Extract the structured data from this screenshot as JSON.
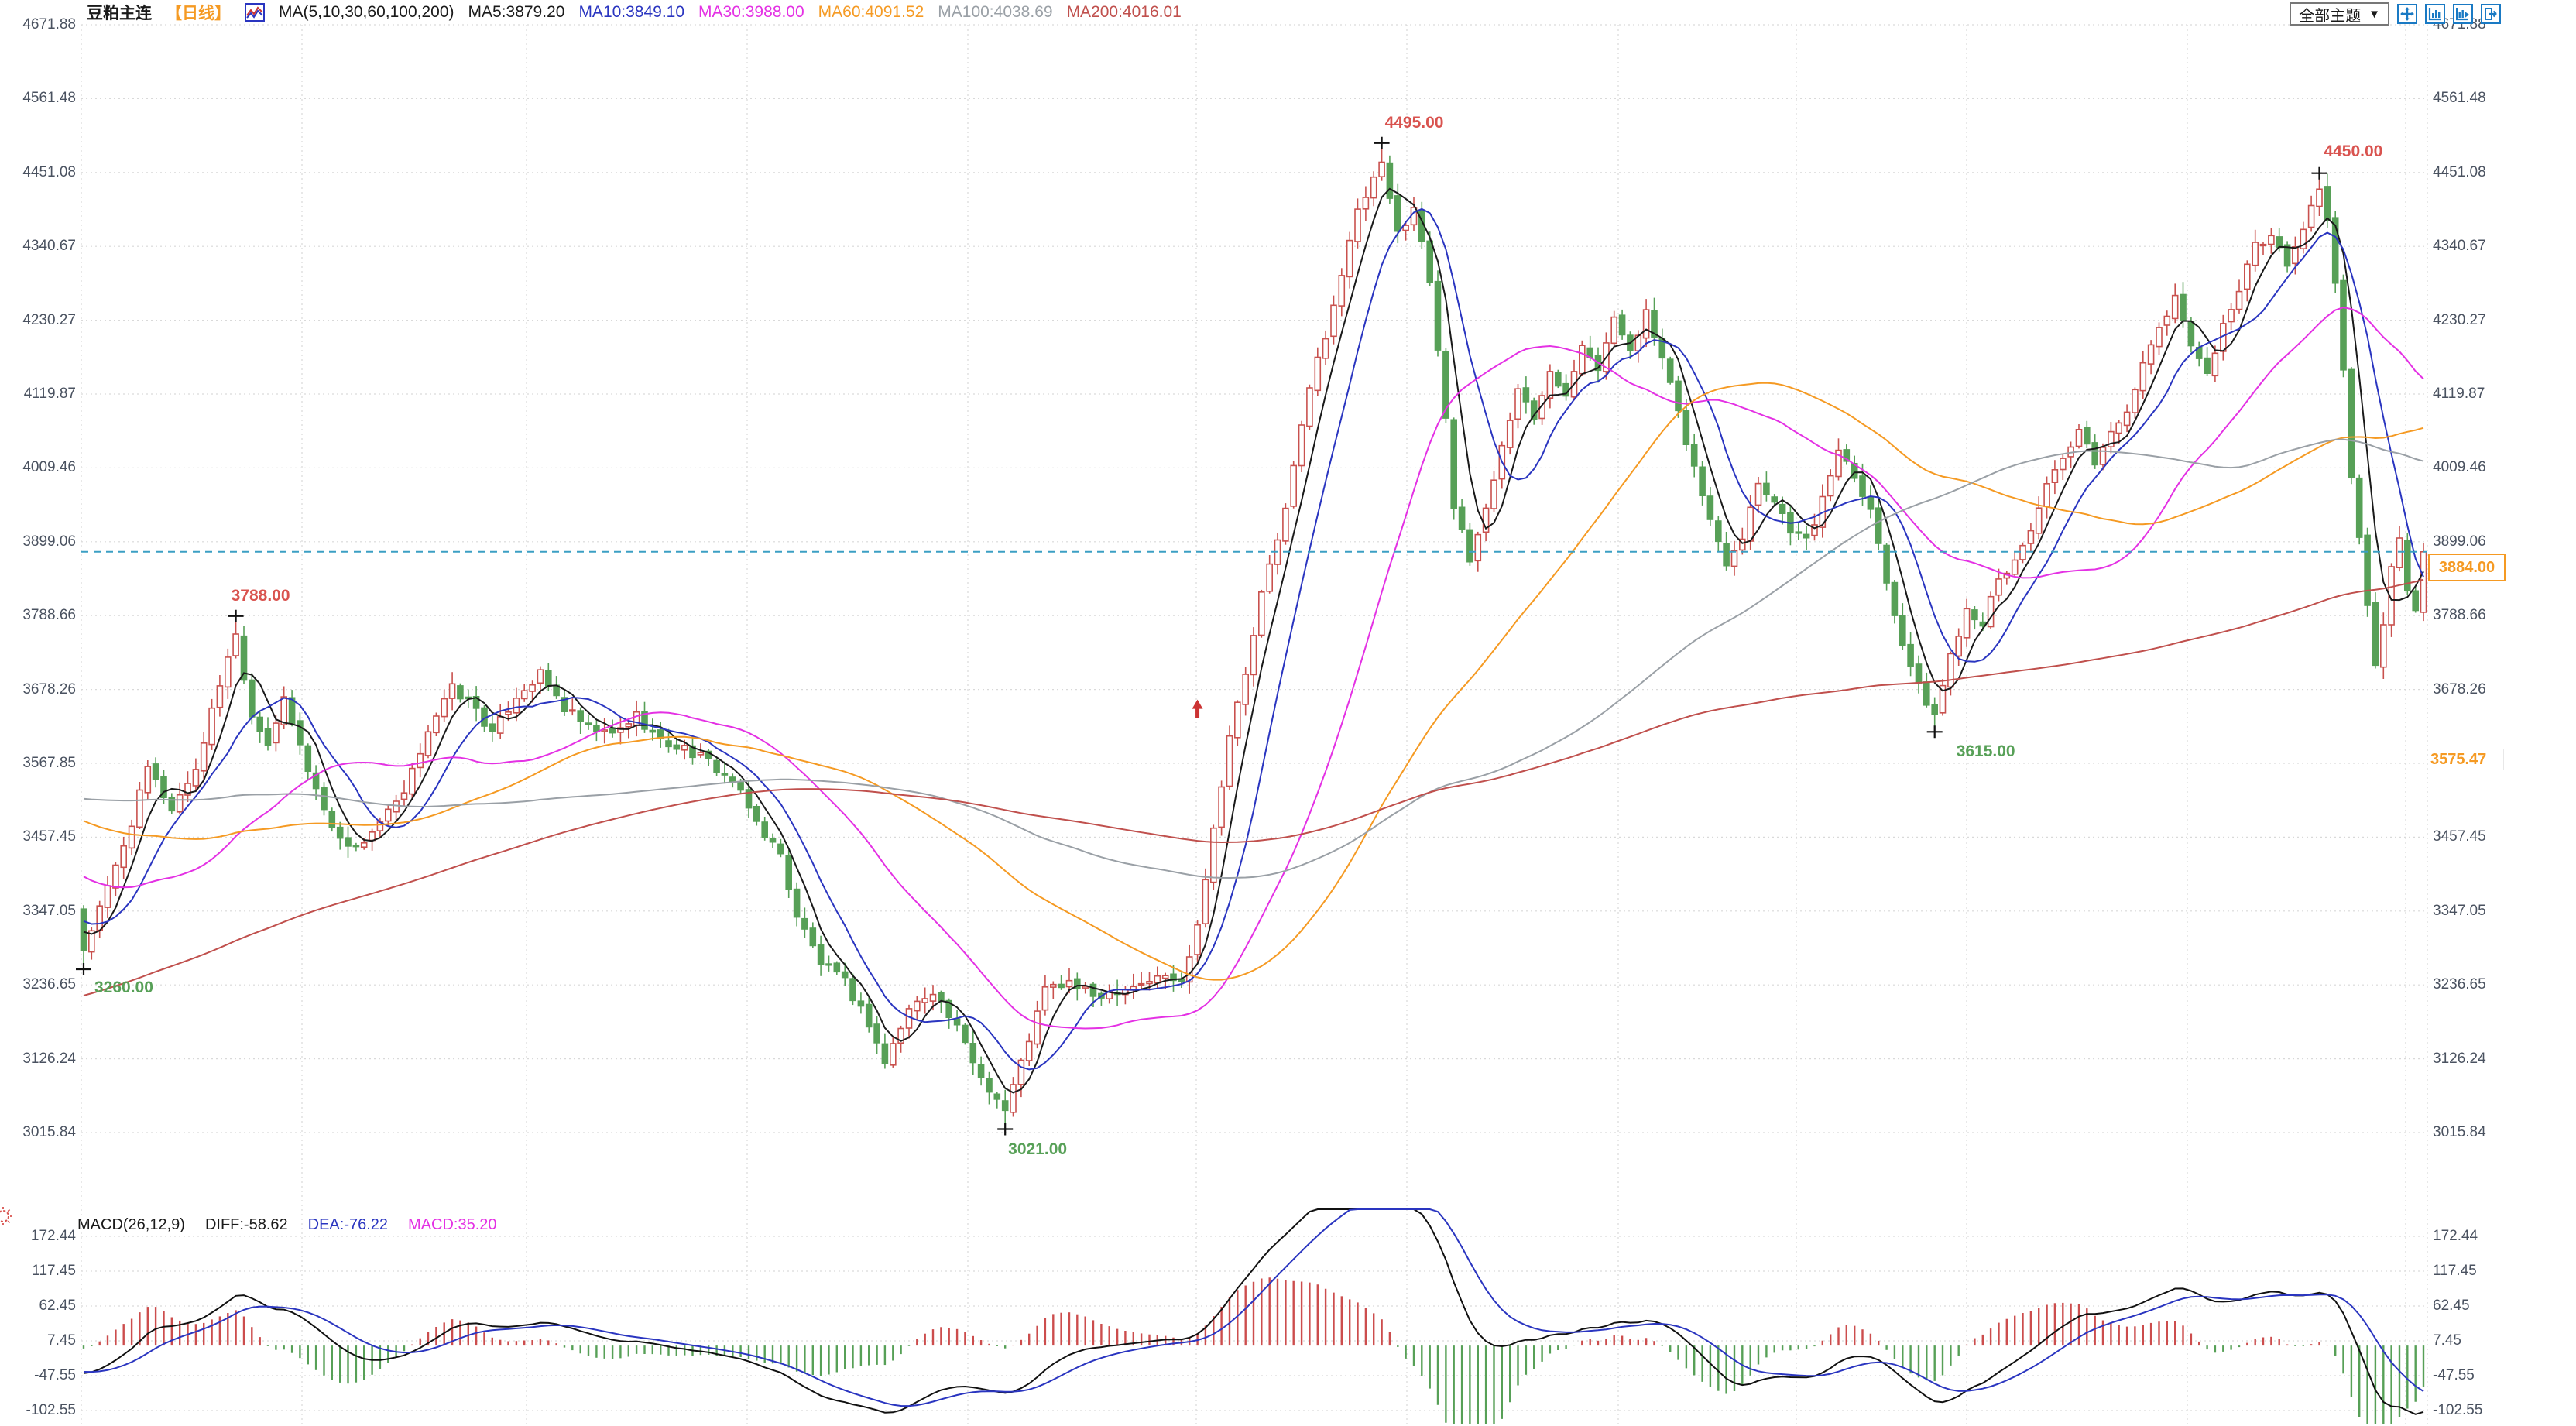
{
  "header": {
    "title": "豆粕主连",
    "period": "【日线】",
    "ma_group": "MA(5,10,30,60,100,200)",
    "ma_values": [
      {
        "label": "MA5:3879.20",
        "color": "#1a1a1a"
      },
      {
        "label": "MA10:3849.10",
        "color": "#2a35c0"
      },
      {
        "label": "MA30:3988.00",
        "color": "#e431e4"
      },
      {
        "label": "MA60:4091.52",
        "color": "#f59a23"
      },
      {
        "label": "MA100:4038.69",
        "color": "#9aa0a6"
      },
      {
        "label": "MA200:4016.01",
        "color": "#c0504d"
      }
    ],
    "theme_dropdown_label": "全部主题",
    "dropdown_arrow": "▼",
    "tool_icons": [
      "move-crosshair-icon",
      "chart-pane-left-icon",
      "chart-pane-right-icon",
      "pop-out-icon"
    ]
  },
  "price_axis": {
    "labels": [
      "4671.88",
      "4561.48",
      "4451.08",
      "4340.67",
      "4230.27",
      "4119.87",
      "4009.46",
      "3899.06",
      "3788.66",
      "3678.26",
      "3567.85",
      "3457.45",
      "3347.05",
      "3236.65",
      "3126.24",
      "3015.84"
    ]
  },
  "last_price": {
    "value": "3884.00",
    "price": 3884.0,
    "color": "#f59a23"
  },
  "ref_price": {
    "value": "3575.47",
    "price": 3575.47,
    "color": "#f59a23"
  },
  "macd": {
    "legend": {
      "name": "MACD(26,12,9)",
      "diff_label": "DIFF:-58.62",
      "dea_label": "DEA:-76.22",
      "macd_label": "MACD:35.20",
      "name_color": "#1a1a1a",
      "diff_color": "#1a1a1a",
      "dea_color": "#2a35c0",
      "macd_color": "#e431e4"
    },
    "axis_labels": [
      "172.44",
      "117.45",
      "62.45",
      "7.45",
      "-47.55",
      "-102.55"
    ]
  },
  "chart_data": {
    "type": "candlestick",
    "title": "豆粕主连 日线 candlestick chart with MA(5,10,30,60,100,200) and MACD(26,12,9)",
    "y_axis_range": [
      3015.84,
      4671.88
    ],
    "y_ticks": [
      4671.88,
      4561.48,
      4451.08,
      4340.67,
      4230.27,
      4119.87,
      4009.46,
      3899.06,
      3788.66,
      3678.26,
      3567.85,
      3457.45,
      3347.05,
      3236.65,
      3126.24,
      3015.84
    ],
    "macd_ticks": [
      172.44,
      117.45,
      62.45,
      7.45,
      -47.55,
      -102.55
    ],
    "candle_count": 293,
    "last_close": 3884.0,
    "up_color": "#c9514e",
    "down_color": "#57a057",
    "grid_color": "#d9d9d9",
    "last_price_line_color": "#3b9fc4",
    "close_waypoints": [
      [
        0,
        3290
      ],
      [
        3,
        3380
      ],
      [
        6,
        3480
      ],
      [
        8,
        3560
      ],
      [
        11,
        3500
      ],
      [
        14,
        3560
      ],
      [
        18,
        3730
      ],
      [
        19,
        3760
      ],
      [
        21,
        3640
      ],
      [
        23,
        3600
      ],
      [
        25,
        3660
      ],
      [
        28,
        3560
      ],
      [
        31,
        3470
      ],
      [
        34,
        3440
      ],
      [
        37,
        3480
      ],
      [
        40,
        3520
      ],
      [
        43,
        3620
      ],
      [
        46,
        3680
      ],
      [
        49,
        3650
      ],
      [
        51,
        3610
      ],
      [
        54,
        3670
      ],
      [
        57,
        3700
      ],
      [
        60,
        3650
      ],
      [
        63,
        3620
      ],
      [
        66,
        3610
      ],
      [
        69,
        3640
      ],
      [
        72,
        3600
      ],
      [
        75,
        3590
      ],
      [
        78,
        3570
      ],
      [
        81,
        3540
      ],
      [
        84,
        3480
      ],
      [
        87,
        3430
      ],
      [
        89,
        3340
      ],
      [
        92,
        3270
      ],
      [
        95,
        3240
      ],
      [
        98,
        3180
      ],
      [
        100,
        3120
      ],
      [
        103,
        3200
      ],
      [
        106,
        3230
      ],
      [
        109,
        3170
      ],
      [
        112,
        3100
      ],
      [
        115,
        3050
      ],
      [
        117,
        3120
      ],
      [
        120,
        3230
      ],
      [
        123,
        3240
      ],
      [
        126,
        3220
      ],
      [
        129,
        3230
      ],
      [
        132,
        3240
      ],
      [
        135,
        3250
      ],
      [
        137,
        3240
      ],
      [
        139,
        3330
      ],
      [
        141,
        3470
      ],
      [
        143,
        3610
      ],
      [
        145,
        3700
      ],
      [
        147,
        3820
      ],
      [
        149,
        3900
      ],
      [
        151,
        4010
      ],
      [
        153,
        4130
      ],
      [
        155,
        4210
      ],
      [
        157,
        4300
      ],
      [
        159,
        4390
      ],
      [
        161,
        4440
      ],
      [
        162,
        4460
      ],
      [
        164,
        4360
      ],
      [
        166,
        4400
      ],
      [
        168,
        4290
      ],
      [
        170,
        4090
      ],
      [
        171,
        3950
      ],
      [
        173,
        3870
      ],
      [
        175,
        3950
      ],
      [
        177,
        4040
      ],
      [
        179,
        4130
      ],
      [
        181,
        4080
      ],
      [
        183,
        4160
      ],
      [
        185,
        4120
      ],
      [
        187,
        4200
      ],
      [
        189,
        4160
      ],
      [
        191,
        4230
      ],
      [
        193,
        4190
      ],
      [
        195,
        4240
      ],
      [
        197,
        4170
      ],
      [
        199,
        4090
      ],
      [
        201,
        4010
      ],
      [
        203,
        3930
      ],
      [
        205,
        3870
      ],
      [
        207,
        3910
      ],
      [
        209,
        3990
      ],
      [
        211,
        3960
      ],
      [
        213,
        3920
      ],
      [
        215,
        3900
      ],
      [
        217,
        3960
      ],
      [
        219,
        4040
      ],
      [
        221,
        4000
      ],
      [
        223,
        3950
      ],
      [
        225,
        3840
      ],
      [
        227,
        3750
      ],
      [
        229,
        3680
      ],
      [
        231,
        3640
      ],
      [
        233,
        3730
      ],
      [
        235,
        3800
      ],
      [
        237,
        3780
      ],
      [
        239,
        3840
      ],
      [
        241,
        3870
      ],
      [
        243,
        3920
      ],
      [
        245,
        3980
      ],
      [
        247,
        4020
      ],
      [
        249,
        4060
      ],
      [
        251,
        4020
      ],
      [
        253,
        4060
      ],
      [
        255,
        4100
      ],
      [
        257,
        4160
      ],
      [
        259,
        4220
      ],
      [
        261,
        4260
      ],
      [
        263,
        4200
      ],
      [
        265,
        4150
      ],
      [
        267,
        4220
      ],
      [
        269,
        4280
      ],
      [
        271,
        4340
      ],
      [
        273,
        4360
      ],
      [
        275,
        4310
      ],
      [
        277,
        4370
      ],
      [
        279,
        4430
      ],
      [
        280,
        4380
      ],
      [
        281,
        4280
      ],
      [
        282,
        4150
      ],
      [
        283,
        4000
      ],
      [
        284,
        3900
      ],
      [
        285,
        3800
      ],
      [
        286,
        3710
      ],
      [
        287,
        3780
      ],
      [
        288,
        3860
      ],
      [
        289,
        3900
      ],
      [
        290,
        3820
      ],
      [
        291,
        3800
      ],
      [
        292,
        3884
      ]
    ],
    "prehistory_waypoints": [
      [
        -200,
        2640
      ],
      [
        -170,
        2720
      ],
      [
        -140,
        2950
      ],
      [
        -110,
        3280
      ],
      [
        -90,
        3520
      ],
      [
        -70,
        3640
      ],
      [
        -55,
        3600
      ],
      [
        -40,
        3560
      ],
      [
        -25,
        3470
      ],
      [
        -12,
        3380
      ],
      [
        -1,
        3310
      ]
    ],
    "extreme_overrides": {
      "0": {
        "low": 3260
      },
      "19": {
        "high": 3788
      },
      "115": {
        "low": 3021
      },
      "162": {
        "high": 4495
      },
      "231": {
        "low": 3615
      },
      "279": {
        "high": 4450
      }
    },
    "ma_series": [
      {
        "name": "MA5",
        "period": 5,
        "color": "#1a1a1a"
      },
      {
        "name": "MA10",
        "period": 10,
        "color": "#2a35c0"
      },
      {
        "name": "MA30",
        "period": 30,
        "color": "#e431e4"
      },
      {
        "name": "MA60",
        "period": 60,
        "color": "#f59a23"
      },
      {
        "name": "MA100",
        "period": 100,
        "color": "#9aa0a6"
      },
      {
        "name": "MA200",
        "period": 200,
        "color": "#c0504d"
      }
    ],
    "macd_params": [
      26,
      12,
      9
    ],
    "macd_colors": {
      "diff": "#111111",
      "dea": "#2a35c0",
      "hist_pos": "#cc4d4d",
      "hist_neg": "#57a057"
    },
    "annotations": [
      {
        "text": "3260.00",
        "price": 3260,
        "index": 0,
        "color": "#57a057",
        "pos": "below",
        "tx": 14,
        "ty": 12
      },
      {
        "text": "3788.00",
        "price": 3788,
        "index": 19,
        "color": "#d9534f",
        "pos": "above",
        "tx": -6,
        "ty": -38
      },
      {
        "text": "3021.00",
        "price": 3021,
        "index": 115,
        "color": "#57a057",
        "pos": "below",
        "tx": 4,
        "ty": 14
      },
      {
        "text": "4495.00",
        "price": 4495,
        "index": 162,
        "color": "#d9534f",
        "pos": "above",
        "tx": 4,
        "ty": -38
      },
      {
        "text": "3615.00",
        "price": 3615,
        "index": 231,
        "color": "#57a057",
        "pos": "below",
        "tx": 28,
        "ty": 14
      },
      {
        "text": "4450.00",
        "price": 4450,
        "index": 279,
        "color": "#d9534f",
        "pos": "above",
        "tx": 6,
        "ty": -40
      }
    ],
    "signal_arrow": {
      "index": 139,
      "price": 3640,
      "color": "#cc3333",
      "glyph": "up-arrow"
    },
    "vgrid_x": [
      105,
      390,
      680,
      965,
      1250,
      1545,
      1817,
      2090,
      2320,
      2540,
      2825,
      3107,
      3135
    ]
  }
}
